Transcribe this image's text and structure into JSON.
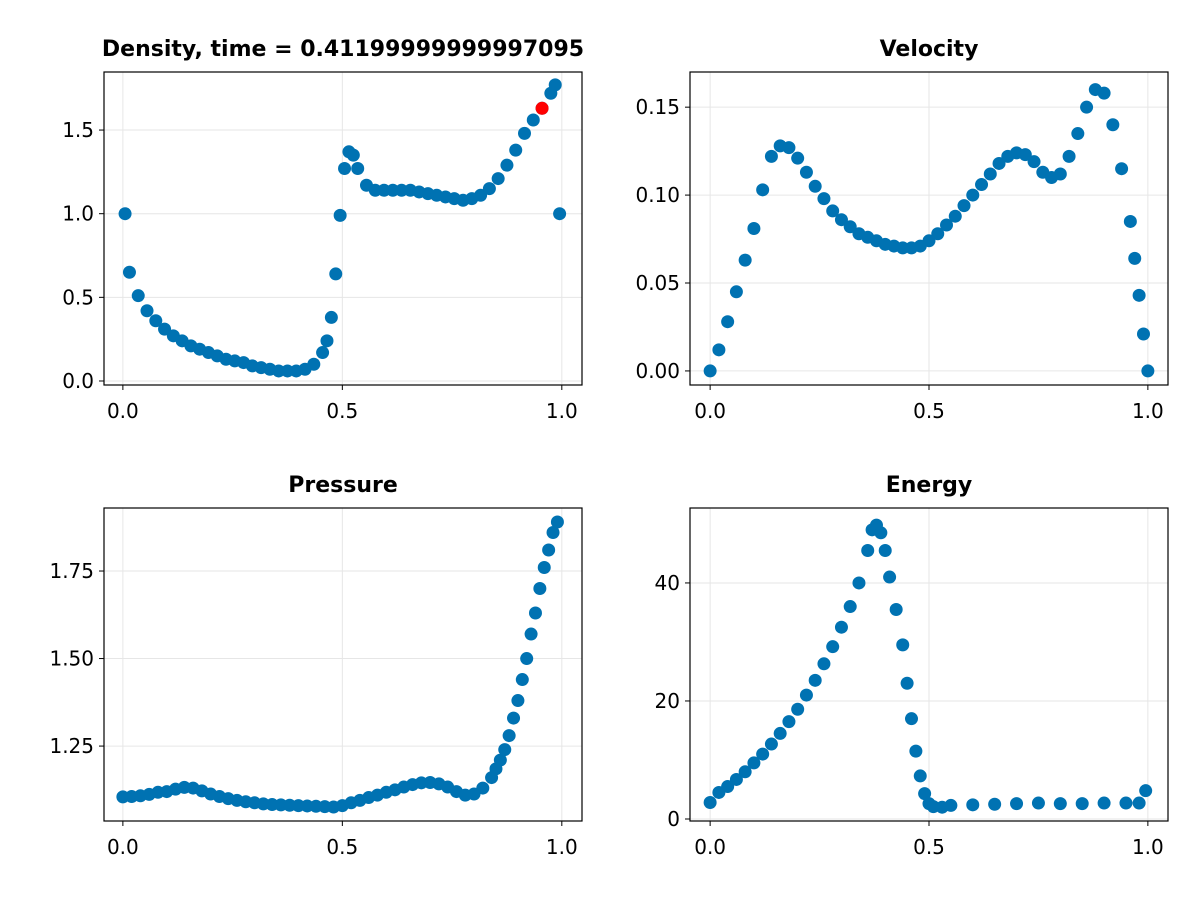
{
  "chart_data": [
    {
      "type": "scatter",
      "title": "Density, time = 0.41199999999997095",
      "color": "#0072b2",
      "grid": true,
      "x": [
        0.005,
        0.015,
        0.035,
        0.055,
        0.075,
        0.095,
        0.115,
        0.135,
        0.155,
        0.175,
        0.195,
        0.215,
        0.235,
        0.255,
        0.275,
        0.295,
        0.315,
        0.335,
        0.355,
        0.375,
        0.395,
        0.415,
        0.435,
        0.455,
        0.465,
        0.475,
        0.485,
        0.495,
        0.505,
        0.515,
        0.525,
        0.535,
        0.555,
        0.575,
        0.595,
        0.615,
        0.635,
        0.655,
        0.675,
        0.695,
        0.715,
        0.735,
        0.755,
        0.775,
        0.795,
        0.815,
        0.835,
        0.855,
        0.875,
        0.895,
        0.915,
        0.935,
        0.955,
        0.975,
        0.985,
        0.995
      ],
      "values": [
        1.0,
        0.65,
        0.51,
        0.42,
        0.36,
        0.31,
        0.27,
        0.24,
        0.21,
        0.19,
        0.17,
        0.15,
        0.13,
        0.12,
        0.11,
        0.09,
        0.08,
        0.07,
        0.06,
        0.06,
        0.06,
        0.07,
        0.1,
        0.17,
        0.24,
        0.38,
        0.64,
        0.99,
        1.27,
        1.37,
        1.35,
        1.27,
        1.17,
        1.14,
        1.14,
        1.14,
        1.14,
        1.14,
        1.13,
        1.12,
        1.11,
        1.1,
        1.09,
        1.08,
        1.09,
        1.11,
        1.15,
        1.21,
        1.29,
        1.38,
        1.48,
        1.56,
        1.63,
        1.72,
        1.77,
        1.0
      ],
      "highlight": {
        "x": 0.955,
        "y": 1.63,
        "color": "#ff0000"
      },
      "xlim": [
        -0.043,
        1.046
      ],
      "ylim": [
        -0.024,
        1.847
      ],
      "xticks": [
        {
          "value": 0,
          "label": "0.0"
        },
        0.5,
        {
          "value": 1,
          "label": "1.0"
        }
      ],
      "yticks": [
        {
          "value": 0,
          "label": "0.0"
        },
        0.5,
        {
          "value": 1,
          "label": "1.0"
        },
        1.5
      ]
    },
    {
      "type": "scatter",
      "title": "Velocity",
      "color": "#0072b2",
      "grid": true,
      "x": [
        0,
        0.02,
        0.04,
        0.06,
        0.08,
        0.1,
        0.12,
        0.14,
        0.16,
        0.18,
        0.2,
        0.22,
        0.24,
        0.26,
        0.28,
        0.3,
        0.32,
        0.34,
        0.36,
        0.38,
        0.4,
        0.42,
        0.44,
        0.46,
        0.48,
        0.5,
        0.52,
        0.54,
        0.56,
        0.58,
        0.6,
        0.62,
        0.64,
        0.66,
        0.68,
        0.7,
        0.72,
        0.74,
        0.76,
        0.78,
        0.8,
        0.82,
        0.84,
        0.86,
        0.88,
        0.9,
        0.92,
        0.94,
        0.96,
        0.97,
        0.98,
        0.99,
        1
      ],
      "values": [
        0,
        0.012,
        0.028,
        0.045,
        0.063,
        0.081,
        0.103,
        0.122,
        0.128,
        0.127,
        0.121,
        0.113,
        0.105,
        0.098,
        0.091,
        0.086,
        0.082,
        0.078,
        0.076,
        0.074,
        0.072,
        0.071,
        0.07,
        0.07,
        0.071,
        0.074,
        0.078,
        0.083,
        0.088,
        0.094,
        0.1,
        0.106,
        0.112,
        0.118,
        0.122,
        0.124,
        0.123,
        0.119,
        0.113,
        0.11,
        0.112,
        0.122,
        0.135,
        0.15,
        0.16,
        0.158,
        0.14,
        0.115,
        0.085,
        0.064,
        0.043,
        0.021,
        0
      ],
      "xlim": [
        -0.046,
        1.046
      ],
      "ylim": [
        -0.008,
        0.17
      ],
      "xticks": [
        {
          "value": 0,
          "label": "0.0"
        },
        0.5,
        {
          "value": 1,
          "label": "1.0"
        }
      ],
      "yticks": [
        {
          "value": 0,
          "label": "0.00"
        },
        0.05,
        {
          "value": 0.1,
          "label": "0.10"
        },
        0.15
      ]
    },
    {
      "type": "scatter",
      "title": "Pressure",
      "color": "#0072b2",
      "grid": true,
      "x": [
        0,
        0.02,
        0.04,
        0.06,
        0.08,
        0.1,
        0.12,
        0.14,
        0.16,
        0.18,
        0.2,
        0.22,
        0.24,
        0.26,
        0.28,
        0.3,
        0.32,
        0.34,
        0.36,
        0.38,
        0.4,
        0.42,
        0.44,
        0.46,
        0.48,
        0.5,
        0.52,
        0.54,
        0.56,
        0.58,
        0.6,
        0.62,
        0.64,
        0.66,
        0.68,
        0.7,
        0.72,
        0.74,
        0.76,
        0.78,
        0.8,
        0.82,
        0.84,
        0.85,
        0.86,
        0.87,
        0.88,
        0.89,
        0.9,
        0.91,
        0.92,
        0.93,
        0.94,
        0.95,
        0.96,
        0.97,
        0.98,
        0.99
      ],
      "values": [
        1.105,
        1.106,
        1.108,
        1.112,
        1.118,
        1.12,
        1.127,
        1.132,
        1.13,
        1.122,
        1.113,
        1.106,
        1.1,
        1.095,
        1.091,
        1.088,
        1.085,
        1.083,
        1.082,
        1.081,
        1.08,
        1.079,
        1.078,
        1.077,
        1.076,
        1.08,
        1.088,
        1.095,
        1.103,
        1.11,
        1.118,
        1.125,
        1.133,
        1.14,
        1.145,
        1.146,
        1.142,
        1.133,
        1.12,
        1.11,
        1.113,
        1.13,
        1.16,
        1.185,
        1.21,
        1.24,
        1.28,
        1.33,
        1.38,
        1.44,
        1.5,
        1.57,
        1.63,
        1.7,
        1.76,
        1.81,
        1.86,
        1.89
      ],
      "xlim": [
        -0.043,
        1.046
      ],
      "ylim": [
        1.036,
        1.93
      ],
      "xticks": [
        {
          "value": 0,
          "label": "0.0"
        },
        0.5,
        {
          "value": 1,
          "label": "1.0"
        }
      ],
      "yticks": [
        1.25,
        {
          "value": 1.5,
          "label": "1.50"
        },
        1.75
      ]
    },
    {
      "type": "scatter",
      "title": "Energy",
      "color": "#0072b2",
      "grid": true,
      "x": [
        0,
        0.02,
        0.04,
        0.06,
        0.08,
        0.1,
        0.12,
        0.14,
        0.16,
        0.18,
        0.2,
        0.22,
        0.24,
        0.26,
        0.28,
        0.3,
        0.32,
        0.34,
        0.36,
        0.37,
        0.38,
        0.39,
        0.4,
        0.41,
        0.425,
        0.44,
        0.45,
        0.46,
        0.47,
        0.48,
        0.49,
        0.5,
        0.51,
        0.53,
        0.55,
        0.6,
        0.65,
        0.7,
        0.75,
        0.8,
        0.85,
        0.9,
        0.95,
        0.98,
        0.995
      ],
      "values": [
        2.8,
        4.5,
        5.5,
        6.7,
        8.0,
        9.5,
        11.0,
        12.7,
        14.5,
        16.5,
        18.6,
        21.0,
        23.5,
        26.3,
        29.2,
        32.5,
        36.0,
        40.0,
        45.5,
        49.0,
        49.8,
        48.5,
        45.5,
        41.0,
        35.5,
        29.5,
        23.0,
        17.0,
        11.5,
        7.3,
        4.3,
        2.6,
        2.1,
        2.0,
        2.3,
        2.4,
        2.5,
        2.6,
        2.7,
        2.6,
        2.6,
        2.7,
        2.7,
        2.7,
        4.8
      ],
      "xlim": [
        -0.046,
        1.046
      ],
      "ylim": [
        -0.34,
        52.7
      ],
      "xticks": [
        {
          "value": 0,
          "label": "0.0"
        },
        0.5,
        {
          "value": 1,
          "label": "1.0"
        }
      ],
      "yticks": [
        0,
        20,
        40
      ]
    }
  ]
}
